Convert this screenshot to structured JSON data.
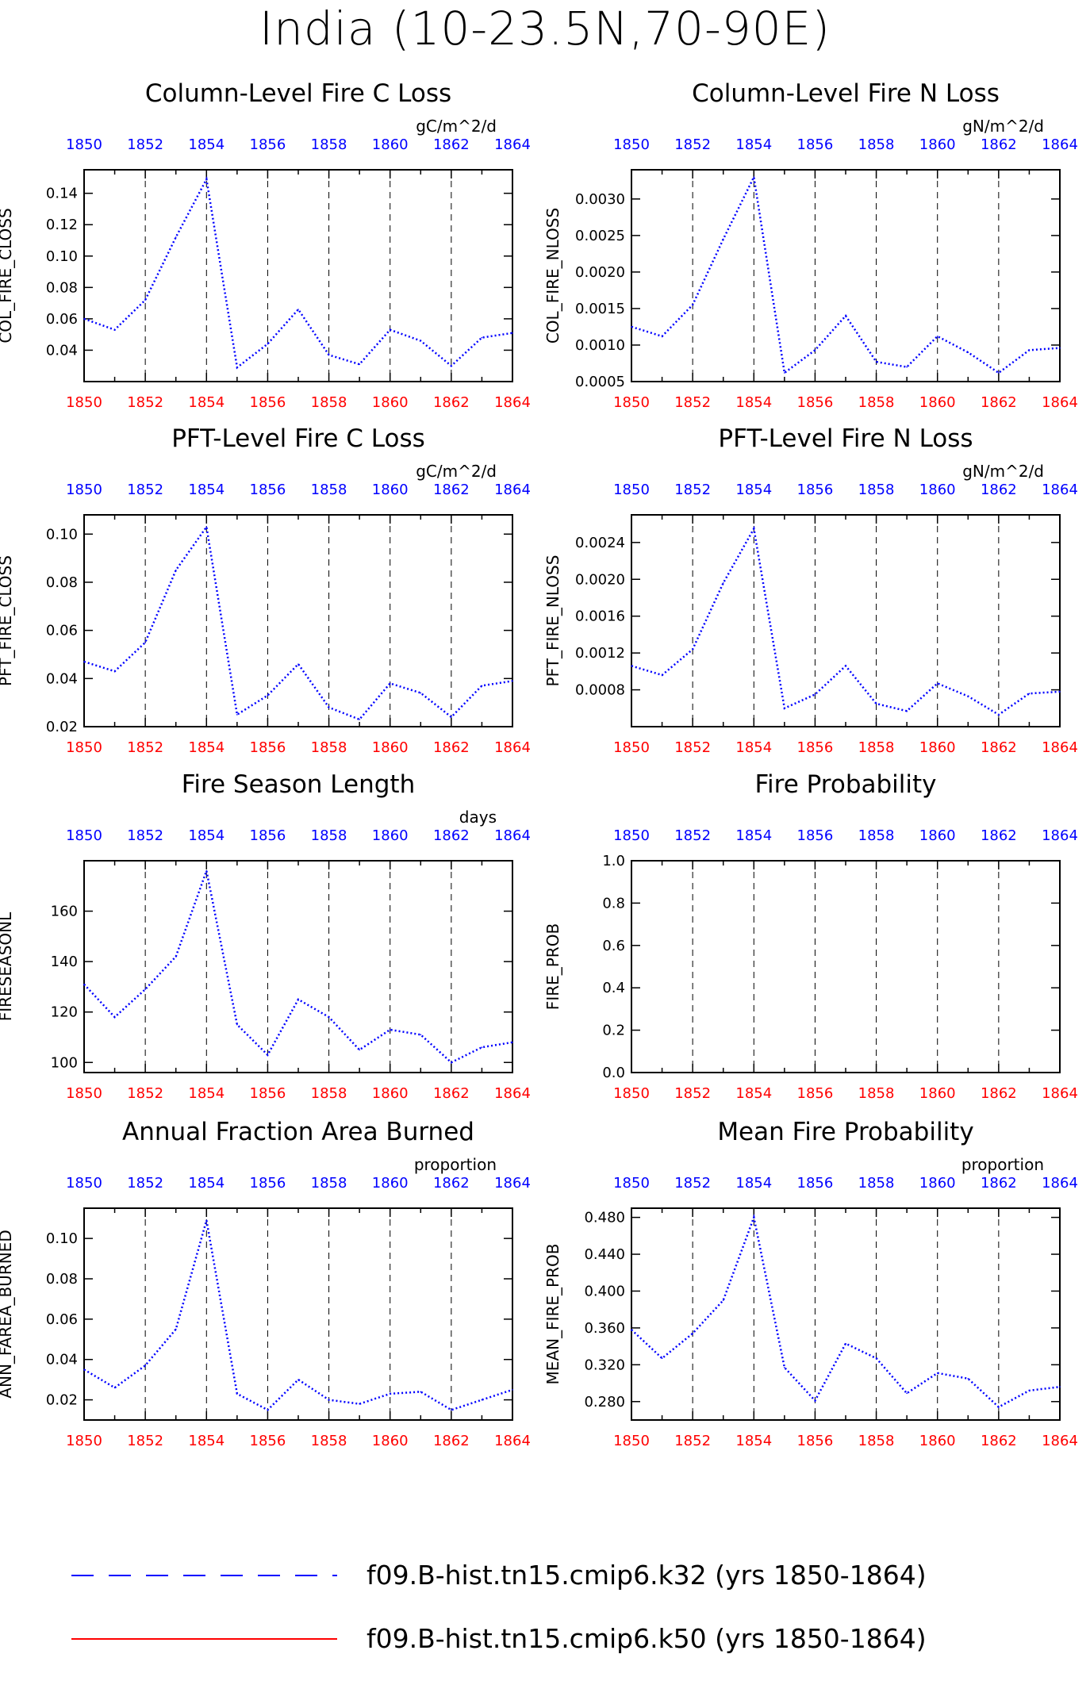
{
  "title": "India (10-23.5N,70-90E)",
  "colors": {
    "dashed_series": "#0000ff",
    "solid_series": "#ff0000",
    "top_ticks": "#0000ff",
    "bottom_ticks": "#ff0000"
  },
  "x_tick_labels": [
    "1850",
    "1852",
    "1854",
    "1856",
    "1858",
    "1860",
    "1862",
    "1864"
  ],
  "legend": [
    {
      "label": "f09.B-hist.tn15.cmip6.k32 (yrs 1850-1864)",
      "style": "dashed",
      "color": "#0000ff"
    },
    {
      "label": "f09.B-hist.tn15.cmip6.k50 (yrs 1850-1864)",
      "style": "solid",
      "color": "#ff0000"
    }
  ],
  "chart_data": [
    {
      "type": "line",
      "title": "Column-Level Fire C Loss",
      "units": "gC/m^2/d",
      "ylabel": "COL_FIRE_CLOSS",
      "xlim": [
        1850,
        1864
      ],
      "ylim": [
        0.02,
        0.155
      ],
      "yticks": [
        "0.04",
        "0.06",
        "0.08",
        "0.10",
        "0.12",
        "0.14"
      ],
      "grid": "vertical dashed at even years",
      "x": [
        1850,
        1851,
        1852,
        1853,
        1854,
        1855,
        1856,
        1857,
        1858,
        1859,
        1860,
        1861,
        1862,
        1863,
        1864
      ],
      "series": [
        {
          "name": "f09.B-hist.tn15.cmip6.k32 (yrs 1850-1864)",
          "values": [
            0.06,
            0.053,
            0.072,
            0.112,
            0.149,
            0.029,
            0.044,
            0.066,
            0.037,
            0.031,
            0.053,
            0.046,
            0.03,
            0.048,
            0.051
          ]
        }
      ]
    },
    {
      "type": "line",
      "title": "Column-Level Fire N Loss",
      "units": "gN/m^2/d",
      "ylabel": "COL_FIRE_NLOSS",
      "xlim": [
        1850,
        1864
      ],
      "ylim": [
        0.0005,
        0.0034
      ],
      "yticks": [
        "0.0005",
        "0.0010",
        "0.0015",
        "0.0020",
        "0.0025",
        "0.0030"
      ],
      "grid": "vertical dashed at even years",
      "x": [
        1850,
        1851,
        1852,
        1853,
        1854,
        1855,
        1856,
        1857,
        1858,
        1859,
        1860,
        1861,
        1862,
        1863,
        1864
      ],
      "series": [
        {
          "name": "f09.B-hist.tn15.cmip6.k32 (yrs 1850-1864)",
          "values": [
            0.00125,
            0.00112,
            0.00155,
            0.00245,
            0.0033,
            0.00062,
            0.00093,
            0.0014,
            0.00077,
            0.0007,
            0.00112,
            0.0009,
            0.00062,
            0.00093,
            0.00096
          ]
        }
      ]
    },
    {
      "type": "line",
      "title": "PFT-Level Fire C Loss",
      "units": "gC/m^2/d",
      "ylabel": "PFT_FIRE_CLOSS",
      "xlim": [
        1850,
        1864
      ],
      "ylim": [
        0.02,
        0.108
      ],
      "yticks": [
        "0.02",
        "0.04",
        "0.06",
        "0.08",
        "0.10"
      ],
      "grid": "vertical dashed at even years",
      "x": [
        1850,
        1851,
        1852,
        1853,
        1854,
        1855,
        1856,
        1857,
        1858,
        1859,
        1860,
        1861,
        1862,
        1863,
        1864
      ],
      "series": [
        {
          "name": "f09.B-hist.tn15.cmip6.k32 (yrs 1850-1864)",
          "values": [
            0.047,
            0.043,
            0.055,
            0.085,
            0.103,
            0.025,
            0.033,
            0.046,
            0.028,
            0.023,
            0.038,
            0.034,
            0.024,
            0.037,
            0.039
          ]
        }
      ]
    },
    {
      "type": "line",
      "title": "PFT-Level Fire N Loss",
      "units": "gN/m^2/d",
      "ylabel": "PFT_FIRE_NLOSS",
      "xlim": [
        1850,
        1864
      ],
      "ylim": [
        0.0004,
        0.0027
      ],
      "yticks": [
        "0.0008",
        "0.0012",
        "0.0016",
        "0.0020",
        "0.0024"
      ],
      "grid": "vertical dashed at even years",
      "x": [
        1850,
        1851,
        1852,
        1853,
        1854,
        1855,
        1856,
        1857,
        1858,
        1859,
        1860,
        1861,
        1862,
        1863,
        1864
      ],
      "series": [
        {
          "name": "f09.B-hist.tn15.cmip6.k32 (yrs 1850-1864)",
          "values": [
            0.00106,
            0.00096,
            0.00124,
            0.00196,
            0.00255,
            0.0006,
            0.00075,
            0.00106,
            0.00065,
            0.00057,
            0.00087,
            0.00073,
            0.00053,
            0.00076,
            0.00078
          ]
        }
      ]
    },
    {
      "type": "line",
      "title": "Fire Season Length",
      "units": "days",
      "ylabel": "FIRESEASONL",
      "xlim": [
        1850,
        1864
      ],
      "ylim": [
        96,
        180
      ],
      "yticks": [
        "100",
        "120",
        "140",
        "160"
      ],
      "grid": "vertical dashed at even years",
      "x": [
        1850,
        1851,
        1852,
        1853,
        1854,
        1855,
        1856,
        1857,
        1858,
        1859,
        1860,
        1861,
        1862,
        1863,
        1864
      ],
      "series": [
        {
          "name": "f09.B-hist.tn15.cmip6.k32 (yrs 1850-1864)",
          "values": [
            131,
            118,
            129,
            142,
            176,
            115,
            103,
            125,
            118,
            105,
            113,
            111,
            100,
            106,
            108
          ]
        }
      ]
    },
    {
      "type": "line",
      "title": "Fire Probability",
      "units": "",
      "ylabel": "FIRE_PROB",
      "xlim": [
        1850,
        1864
      ],
      "ylim": [
        0.0,
        1.0
      ],
      "yticks": [
        "0.0",
        "0.2",
        "0.4",
        "0.6",
        "0.8",
        "1.0"
      ],
      "grid": "vertical dashed at even years",
      "x": [],
      "series": []
    },
    {
      "type": "line",
      "title": "Annual Fraction Area Burned",
      "units": "proportion",
      "ylabel": "ANN_FAREA_BURNED",
      "xlim": [
        1850,
        1864
      ],
      "ylim": [
        0.01,
        0.115
      ],
      "yticks": [
        "0.02",
        "0.04",
        "0.06",
        "0.08",
        "0.10"
      ],
      "grid": "vertical dashed at even years",
      "x": [
        1850,
        1851,
        1852,
        1853,
        1854,
        1855,
        1856,
        1857,
        1858,
        1859,
        1860,
        1861,
        1862,
        1863,
        1864
      ],
      "series": [
        {
          "name": "f09.B-hist.tn15.cmip6.k32 (yrs 1850-1864)",
          "values": [
            0.035,
            0.026,
            0.037,
            0.055,
            0.109,
            0.023,
            0.015,
            0.03,
            0.02,
            0.018,
            0.023,
            0.024,
            0.015,
            0.02,
            0.025
          ]
        }
      ]
    },
    {
      "type": "line",
      "title": "Mean Fire Probability",
      "units": "proportion",
      "ylabel": "MEAN_FIRE_PROB",
      "xlim": [
        1850,
        1864
      ],
      "ylim": [
        0.26,
        0.49
      ],
      "yticks": [
        "0.280",
        "0.320",
        "0.360",
        "0.400",
        "0.440",
        "0.480"
      ],
      "grid": "vertical dashed at even years",
      "x": [
        1850,
        1851,
        1852,
        1853,
        1854,
        1855,
        1856,
        1857,
        1858,
        1859,
        1860,
        1861,
        1862,
        1863,
        1864
      ],
      "series": [
        {
          "name": "f09.B-hist.tn15.cmip6.k32 (yrs 1850-1864)",
          "values": [
            0.358,
            0.327,
            0.354,
            0.39,
            0.48,
            0.317,
            0.281,
            0.343,
            0.327,
            0.289,
            0.311,
            0.305,
            0.274,
            0.292,
            0.296
          ]
        }
      ]
    }
  ]
}
